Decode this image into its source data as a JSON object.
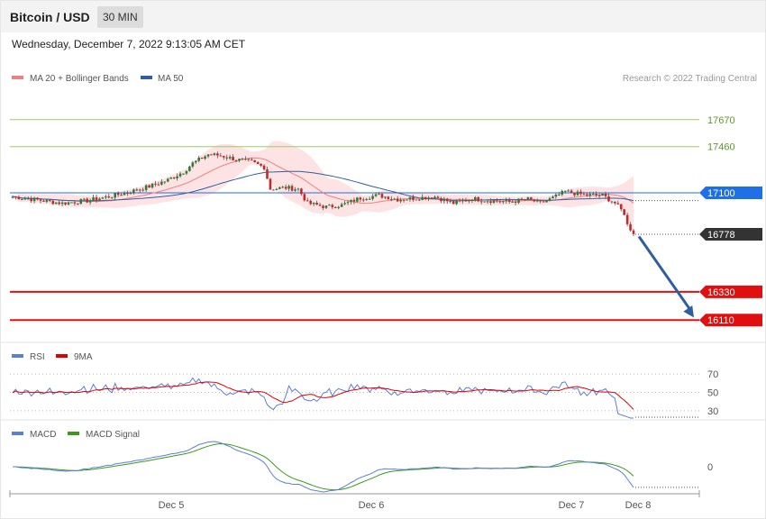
{
  "header": {
    "pair": "Bitcoin / USD",
    "timeframe": "30 MIN",
    "datetime": "Wednesday, December 7, 2022 9:13:05 AM CET"
  },
  "main_panel": {
    "legend": [
      {
        "label": "MA 20 + Bollinger Bands",
        "color": "#f08080"
      },
      {
        "label": "MA 50",
        "color": "#2f5f9e"
      }
    ],
    "credit": "Research © 2022 Trading Central"
  },
  "rsi_panel": {
    "legend": [
      {
        "label": "RSI",
        "color": "#5b7fd6"
      },
      {
        "label": "9MA",
        "color": "#e00000"
      }
    ]
  },
  "macd_panel": {
    "legend": [
      {
        "label": "MACD",
        "color": "#5b7fd6"
      },
      {
        "label": "MACD Signal",
        "color": "#3a9a1a"
      }
    ]
  },
  "chart_data": [
    {
      "type": "candlestick",
      "name": "price",
      "ylim": [
        15950,
        17900
      ],
      "x_ticks": [
        "Dec 5",
        "Dec 6",
        "Dec 7",
        "Dec 8"
      ],
      "ohlc": [],
      "levels": [
        {
          "value": 17670,
          "label": "17670",
          "color": "#9bcc6a",
          "tag": false
        },
        {
          "value": 17460,
          "label": "17460",
          "color": "#9bcc6a",
          "tag": false
        },
        {
          "value": 17100,
          "label": "17100",
          "color": "#1f6fe6",
          "tag": true
        },
        {
          "value": 16778,
          "label": "16778",
          "color": "#333333",
          "tag": true
        },
        {
          "value": 16330,
          "label": "16330",
          "color": "#e01010",
          "tag": true
        },
        {
          "value": 16110,
          "label": "16110",
          "color": "#e01010",
          "tag": true
        }
      ],
      "forecast_arrow": {
        "from": 16760,
        "to": 16130
      }
    },
    {
      "type": "line",
      "name": "RSI",
      "ylim": [
        20,
        80
      ],
      "y_ticks": [
        70,
        50,
        30
      ],
      "series": []
    },
    {
      "type": "line",
      "name": "MACD",
      "y_ticks": [
        0
      ],
      "series": []
    }
  ]
}
